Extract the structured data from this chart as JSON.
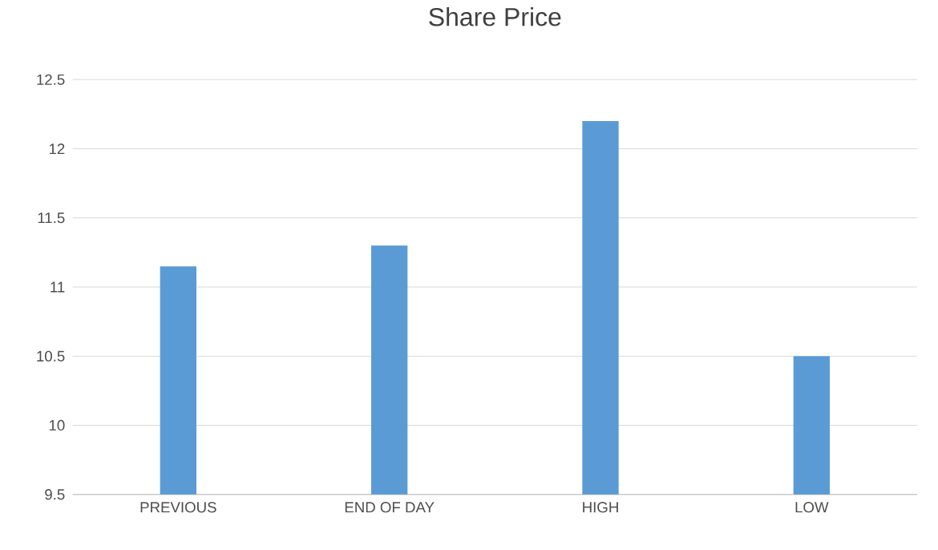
{
  "chart_data": {
    "type": "bar",
    "title": "Share Price",
    "categories": [
      "PREVIOUS",
      "END OF DAY",
      "HIGH",
      "LOW"
    ],
    "values": [
      11.15,
      11.3,
      12.2,
      10.5
    ],
    "color": "#5b9bd5",
    "ylim": [
      9.5,
      12.5
    ],
    "yticks": [
      9.5,
      10,
      10.5,
      11,
      11.5,
      12,
      12.5
    ],
    "grid": "y"
  }
}
